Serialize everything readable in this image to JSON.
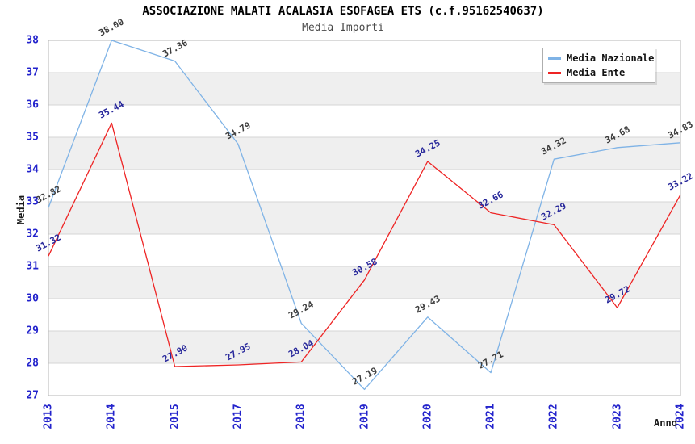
{
  "chart_data": {
    "type": "line",
    "title": "ASSOCIAZIONE MALATI ACALASIA ESOFAGEA ETS (c.f.95162540637)",
    "subtitle": "Media Importi",
    "categories": [
      "2013",
      "2014",
      "2015",
      "2017",
      "2018",
      "2019",
      "2020",
      "2021",
      "2022",
      "2023",
      "2024"
    ],
    "series": [
      {
        "name": "Media Nazionale",
        "color": "#7fb3e6",
        "label_color": "#3d3d3d",
        "values": [
          32.82,
          38.0,
          37.36,
          34.79,
          29.24,
          27.19,
          29.43,
          27.71,
          34.32,
          34.68,
          34.83
        ]
      },
      {
        "name": "Media Ente",
        "color": "#ee2424",
        "label_color": "#28289b",
        "values": [
          31.32,
          35.44,
          27.9,
          27.95,
          28.04,
          30.58,
          34.25,
          32.66,
          32.29,
          29.72,
          33.22
        ]
      }
    ],
    "xlabel": "Anno",
    "ylabel": "Media",
    "ylim": [
      27,
      38
    ],
    "ytick_step": 1,
    "yticks": [
      27,
      28,
      29,
      30,
      31,
      32,
      33,
      34,
      35,
      36,
      37,
      38
    ],
    "grid": true,
    "legend_position": "top-right",
    "value_label_decimals": 2
  },
  "colors": {
    "axis_tick_text": "#2323cc",
    "band_gray": "#efefef",
    "gridline": "#d4d4d4",
    "plot_border": "#b6b6b6",
    "title_text": "#000000",
    "subtitle_text": "#4a4a4a"
  }
}
